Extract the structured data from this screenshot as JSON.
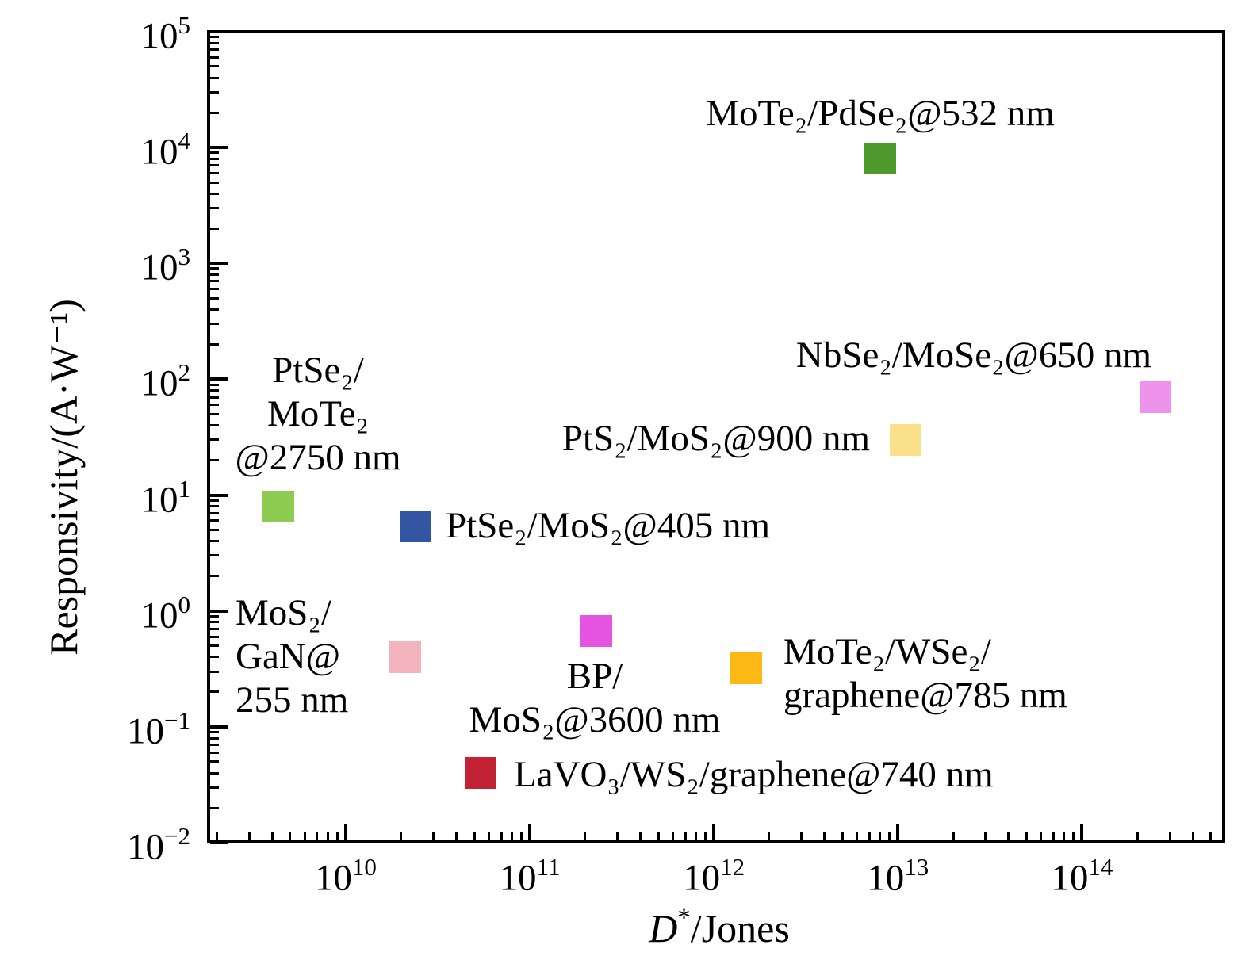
{
  "figure": {
    "background": "#ffffff",
    "ylabel": "Responsivity/(A·W⁻¹)",
    "xlabel_parts": {
      "variable": "D",
      "superscript": "*",
      "rest": "/Jones"
    }
  },
  "chart_data": {
    "type": "scatter",
    "marker_shape": "square",
    "title": "",
    "xlabel": "D*/Jones",
    "ylabel": "Responsivity/(A·W⁻¹)",
    "x_scale": "log",
    "y_scale": "log",
    "xlim": [
      1800000000.0,
      600000000000000.0
    ],
    "ylim": [
      0.01,
      100000
    ],
    "x_tick_exponents": [
      10,
      11,
      12,
      13,
      14
    ],
    "y_tick_exponents": [
      5,
      4,
      3,
      2,
      1,
      0,
      -1,
      -2
    ],
    "grid": false,
    "legend": "none (points labeled inline)",
    "points": [
      {
        "id": "mote2_pdse2",
        "label": "MoTe₂/PdSe₂@532 nm",
        "label_lines": [
          "MoTe₂/PdSe₂@532 nm"
        ],
        "x": 8000000000000.0,
        "y": 8000,
        "color": "#4e9a2c"
      },
      {
        "id": "nbse2_mose2",
        "label": "NbSe₂/MoSe₂@650 nm",
        "label_lines": [
          "NbSe₂/MoSe₂@650 nm"
        ],
        "x": 250000000000000.0,
        "y": 70,
        "color": "#ee93ec"
      },
      {
        "id": "pts2_mos2",
        "label": "PtS₂/MoS₂@900 nm",
        "label_lines": [
          "PtS₂/MoS₂@900 nm"
        ],
        "x": 11000000000000.0,
        "y": 30,
        "color": "#fbe08a"
      },
      {
        "id": "ptse2_mote2",
        "label": "PtSe₂/MoTe₂@2750 nm",
        "label_lines": [
          "PtSe₂/",
          "MoTe₂",
          "@2750 nm"
        ],
        "x": 4300000000.0,
        "y": 8,
        "color": "#8ecb52"
      },
      {
        "id": "ptse2_mos2",
        "label": "PtSe₂/MoS₂@405 nm",
        "label_lines": [
          "PtSe₂/MoS₂@405 nm"
        ],
        "x": 24000000000.0,
        "y": 5.4,
        "color": "#3356a4"
      },
      {
        "id": "mos2_gan",
        "label": "MoS₂/GaN@255 nm",
        "label_lines": [
          "MoS₂/",
          "GaN@",
          "255 nm"
        ],
        "x": 21000000000.0,
        "y": 0.4,
        "color": "#f2b3bd"
      },
      {
        "id": "bp_mos2",
        "label": "BP/MoS₂@3600 nm",
        "label_lines": [
          "BP/",
          "MoS₂@3600 nm"
        ],
        "x": 230000000000.0,
        "y": 0.67,
        "color": "#e454e1"
      },
      {
        "id": "mote2_wse2",
        "label": "MoTe₂/WSe₂/graphene@785 nm",
        "label_lines": [
          "MoTe₂/WSe₂/",
          "graphene@785 nm"
        ],
        "x": 1500000000000.0,
        "y": 0.32,
        "color": "#fcb814"
      },
      {
        "id": "lavo3_ws2",
        "label": "LaVO₃/WS₂/graphene@740 nm",
        "label_lines": [
          "LaVO₃/WS₂/graphene@740 nm"
        ],
        "x": 54000000000.0,
        "y": 0.04,
        "color": "#c32134"
      }
    ]
  }
}
